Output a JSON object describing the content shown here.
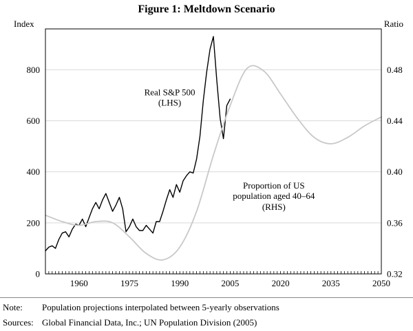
{
  "chart_data": {
    "type": "line",
    "title": "Figure 1: Meltdown Scenario",
    "grid": "horizontal",
    "grid_color": "#d9d9d9",
    "x_axis": {
      "lim": [
        1950,
        2050
      ],
      "minor_tick_step": 1,
      "ticks": [
        {
          "v": 1960,
          "label": "1960"
        },
        {
          "v": 1975,
          "label": "1975"
        },
        {
          "v": 1990,
          "label": "1990"
        },
        {
          "v": 2005,
          "label": "2005"
        },
        {
          "v": 2020,
          "label": "2020"
        },
        {
          "v": 2035,
          "label": "2035"
        },
        {
          "v": 2050,
          "label": "2050"
        }
      ]
    },
    "left_axis": {
      "label": "Index",
      "lim": [
        0,
        960
      ],
      "ticks": [
        {
          "v": 0,
          "label": "0"
        },
        {
          "v": 200,
          "label": "200"
        },
        {
          "v": 400,
          "label": "400"
        },
        {
          "v": 600,
          "label": "600"
        },
        {
          "v": 800,
          "label": "800"
        }
      ]
    },
    "right_axis": {
      "label": "Ratio",
      "lim": [
        0.32,
        0.512
      ],
      "ticks": [
        {
          "v": 0.32,
          "label": "0.32"
        },
        {
          "v": 0.36,
          "label": "0.36"
        },
        {
          "v": 0.4,
          "label": "0.40"
        },
        {
          "v": 0.44,
          "label": "0.44"
        },
        {
          "v": 0.48,
          "label": "0.48"
        }
      ]
    },
    "series": [
      {
        "id": "sp500",
        "name": "Real S&P 500 (LHS)",
        "axis": "left",
        "color": "#000000",
        "width": 1.4,
        "smooth": false,
        "x": [
          1950,
          1951,
          1952,
          1953,
          1954,
          1955,
          1956,
          1957,
          1958,
          1959,
          1960,
          1961,
          1962,
          1963,
          1964,
          1965,
          1966,
          1967,
          1968,
          1969,
          1970,
          1971,
          1972,
          1973,
          1974,
          1975,
          1976,
          1977,
          1978,
          1979,
          1980,
          1981,
          1982,
          1983,
          1984,
          1985,
          1986,
          1987,
          1988,
          1989,
          1990,
          1991,
          1992,
          1993,
          1994,
          1995,
          1996,
          1997,
          1998,
          1999,
          2000,
          2001,
          2002,
          2003,
          2004,
          2005
        ],
        "y": [
          90,
          105,
          110,
          100,
          135,
          160,
          165,
          145,
          175,
          195,
          190,
          215,
          185,
          220,
          255,
          280,
          255,
          290,
          315,
          280,
          245,
          270,
          300,
          255,
          165,
          185,
          215,
          185,
          170,
          170,
          190,
          175,
          160,
          205,
          205,
          245,
          290,
          330,
          300,
          350,
          320,
          365,
          385,
          400,
          395,
          450,
          540,
          680,
          790,
          880,
          930,
          760,
          610,
          530,
          660,
          685
        ]
      },
      {
        "id": "population",
        "name": "Proportion of US population aged 40–64 (RHS)",
        "axis": "right",
        "color": "#c8c8c8",
        "width": 1.8,
        "smooth": true,
        "x": [
          1950,
          1955,
          1960,
          1965,
          1970,
          1975,
          1980,
          1985,
          1990,
          1995,
          2000,
          2005,
          2010,
          2015,
          2020,
          2025,
          2030,
          2035,
          2040,
          2045,
          2050
        ],
        "y": [
          0.366,
          0.361,
          0.358,
          0.361,
          0.36,
          0.349,
          0.336,
          0.331,
          0.341,
          0.369,
          0.413,
          0.452,
          0.481,
          0.479,
          0.461,
          0.442,
          0.427,
          0.422,
          0.427,
          0.436,
          0.443
        ]
      }
    ],
    "annotations": [
      {
        "name": "sp500-label",
        "lines": [
          "Real S&P 500",
          "(LHS)"
        ],
        "x": 1987,
        "y": 690,
        "axis": "left"
      },
      {
        "name": "population-label",
        "lines": [
          "Proportion of US",
          "population aged 40–64",
          "(RHS)"
        ],
        "x": 2018,
        "y": 0.381,
        "axis": "right"
      }
    ]
  },
  "notes": {
    "note_label": "Note:",
    "note_text": "Population projections interpolated between 5-yearly observations",
    "sources_label": "Sources:",
    "sources_text": "Global Financial Data, Inc.; UN Population Division (2005)"
  }
}
